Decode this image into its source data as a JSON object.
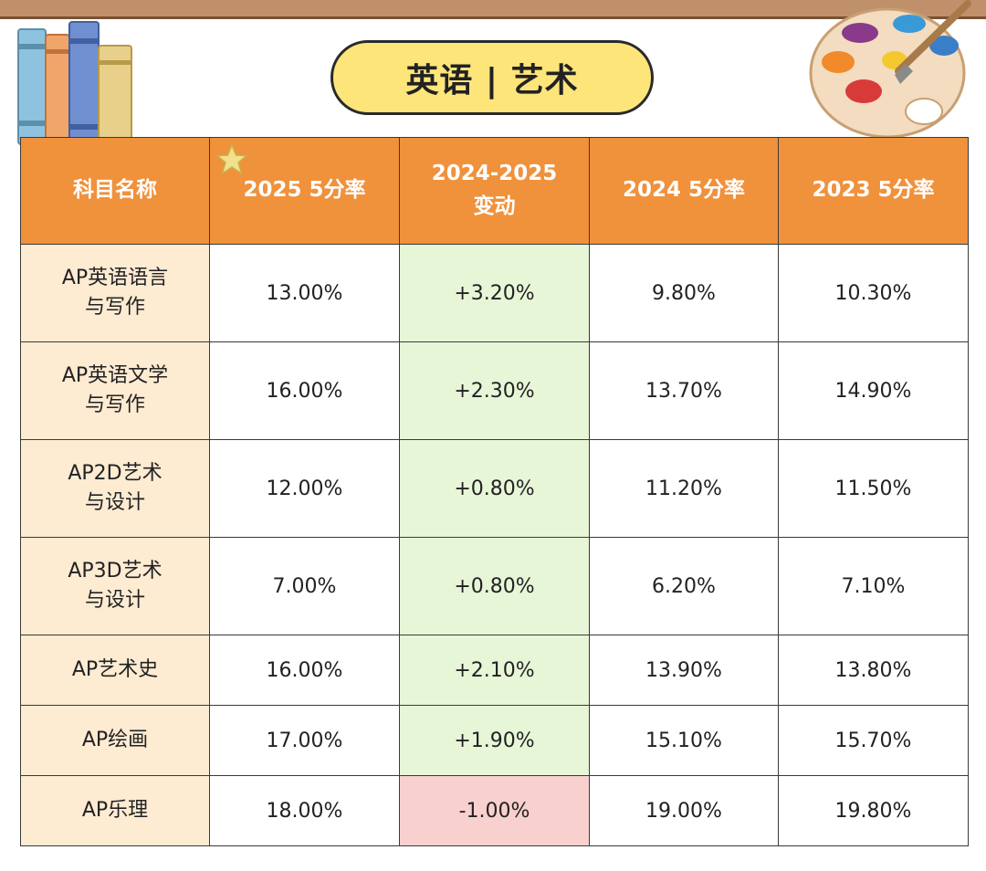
{
  "title": "英语 | 艺术",
  "table": {
    "headers": [
      "科目名称",
      "2025 5分率",
      "2024-2025\n变动",
      "2024 5分率",
      "2023 5分率"
    ],
    "rows": [
      {
        "subject": [
          "AP英语语言",
          "与写作"
        ],
        "r2025": "13.00%",
        "change": "+3.20%",
        "r2024": "9.80%",
        "r2023": "10.30%"
      },
      {
        "subject": [
          "AP英语文学",
          "与写作"
        ],
        "r2025": "16.00%",
        "change": "+2.30%",
        "r2024": "13.70%",
        "r2023": "14.90%"
      },
      {
        "subject": [
          "AP2D艺术",
          "与设计"
        ],
        "r2025": "12.00%",
        "change": "+0.80%",
        "r2024": "11.20%",
        "r2023": "11.50%"
      },
      {
        "subject": [
          "AP3D艺术",
          "与设计"
        ],
        "r2025": "7.00%",
        "change": "+0.80%",
        "r2024": "6.20%",
        "r2023": "7.10%"
      },
      {
        "subject": [
          "AP艺术史"
        ],
        "r2025": "16.00%",
        "change": "+2.10%",
        "r2024": "13.90%",
        "r2023": "13.80%"
      },
      {
        "subject": [
          "AP绘画"
        ],
        "r2025": "17.00%",
        "change": "+1.90%",
        "r2024": "15.10%",
        "r2023": "15.70%"
      },
      {
        "subject": [
          "AP乐理"
        ],
        "r2025": "18.00%",
        "change": "-1.00%",
        "r2024": "19.00%",
        "r2023": "19.80%"
      }
    ]
  },
  "colors": {
    "header_bg": "#f0913b",
    "subject_bg": "#fdebd2",
    "positive_change_bg": "#e8f6d8",
    "negative_change_bg": "#f8d0ce",
    "current_rate_text": "#2a2a8a",
    "title_pill_bg": "#fde57a"
  },
  "icons": [
    "books-icon",
    "paint-palette-icon",
    "star-icon"
  ]
}
